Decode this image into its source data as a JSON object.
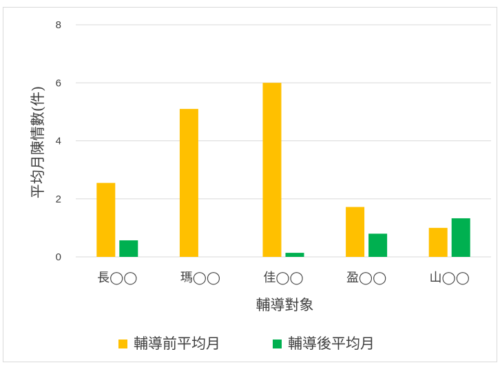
{
  "chart_data": {
    "type": "bar",
    "title": "",
    "xlabel": "輔導對象",
    "ylabel": "平均月陳情數(件)",
    "ylim": [
      0,
      8
    ],
    "yticks": [
      0,
      2,
      4,
      6,
      8
    ],
    "categories": [
      "長◯◯",
      "瑪◯◯",
      "佳◯◯",
      "盈◯◯",
      "山◯◯"
    ],
    "series": [
      {
        "name": "輔導前平均月",
        "color": "#ffc000",
        "values": [
          2.55,
          5.1,
          6.0,
          1.72,
          1.0
        ]
      },
      {
        "name": "輔導後平均月",
        "color": "#00b050",
        "values": [
          0.57,
          0,
          0.14,
          0.8,
          1.33
        ]
      }
    ],
    "grid": true,
    "legend_position": "bottom"
  }
}
